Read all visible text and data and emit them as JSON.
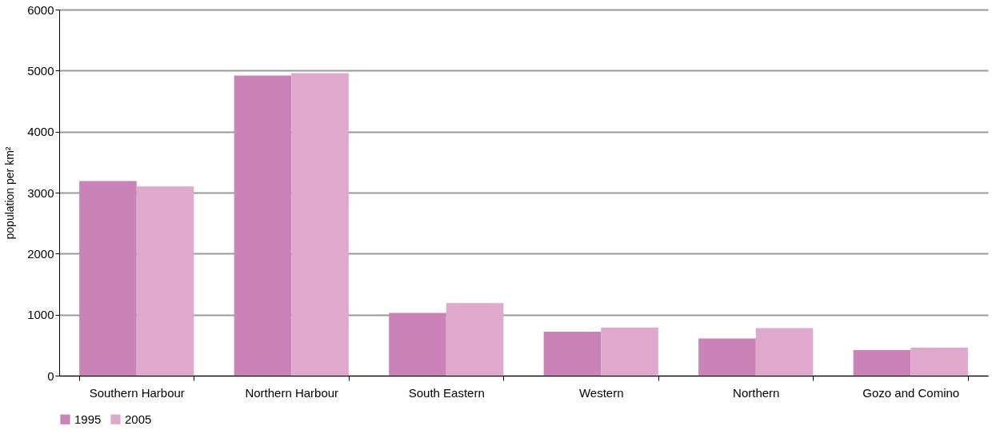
{
  "chart_data": {
    "type": "bar",
    "ylabel": "population per km²",
    "categories": [
      "Southern Harbour",
      "Northern Harbour",
      "South Eastern",
      "Western",
      "Northern",
      "Gozo and Comino"
    ],
    "series": [
      {
        "name": "1995",
        "color": "#c983b7",
        "values": [
          3190,
          4920,
          1030,
          720,
          610,
          420
        ]
      },
      {
        "name": "2005",
        "color": "#dea9cc",
        "values": [
          3100,
          4960,
          1190,
          790,
          780,
          460
        ]
      }
    ],
    "ylim": [
      0,
      6000
    ],
    "yticks": [
      0,
      1000,
      2000,
      3000,
      4000,
      5000,
      6000
    ],
    "grid": "y",
    "legend": "bottom"
  }
}
